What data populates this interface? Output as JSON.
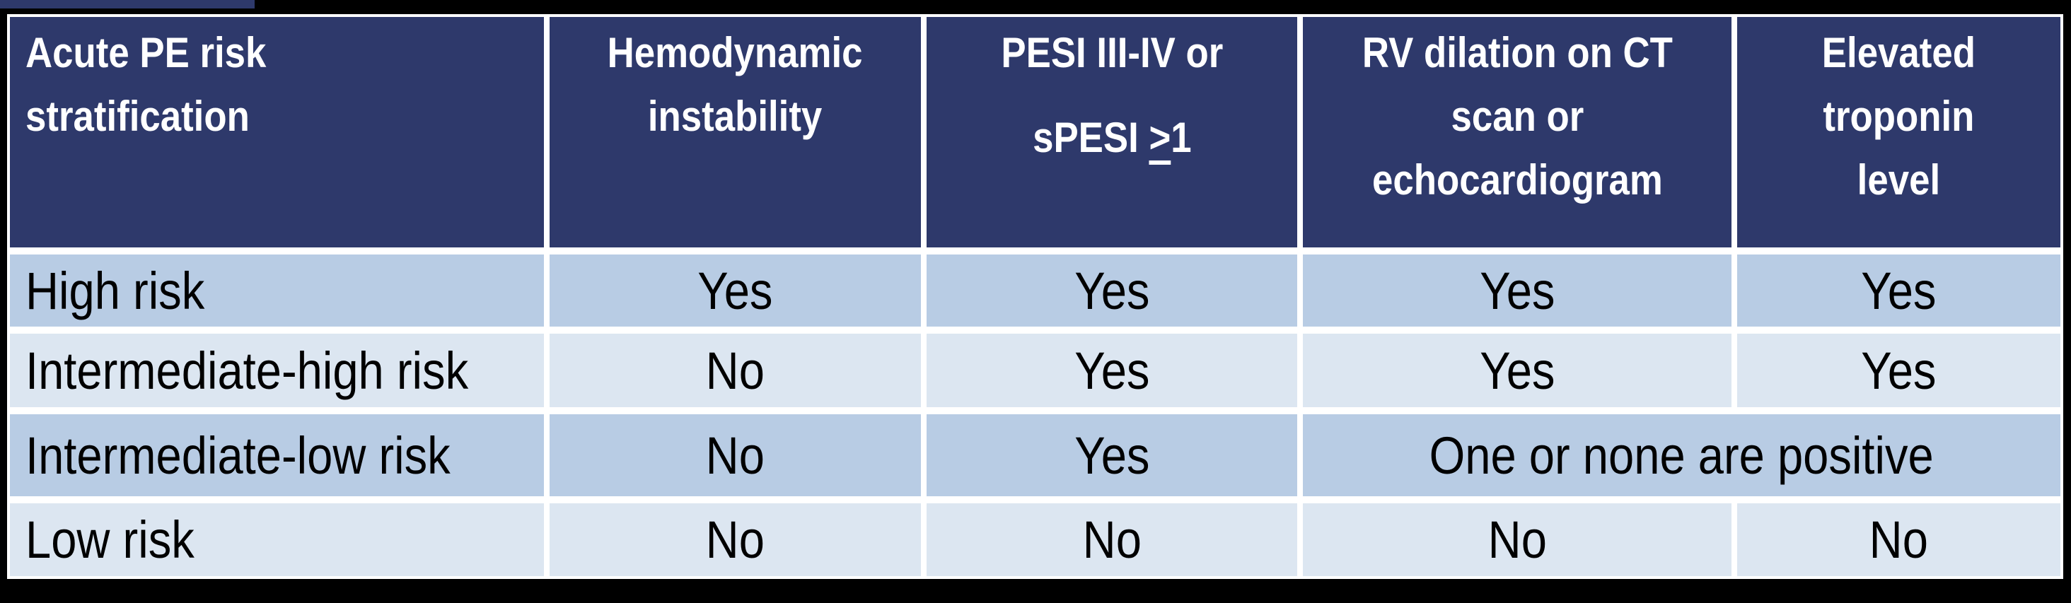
{
  "page": {
    "background_color": "#000000",
    "accent_strip_color": "#2E396B"
  },
  "table": {
    "colors": {
      "header_bg": "#2E396B",
      "header_text": "#FFFFFF",
      "band_dark": "#B8CCE4",
      "band_light": "#DCE6F1",
      "border": "#FFFFFF",
      "body_text": "#000000"
    },
    "header": {
      "col1": {
        "lines": [
          "Acute PE risk",
          "stratification"
        ]
      },
      "col2": {
        "lines": [
          "Hemodynamic",
          "instability"
        ]
      },
      "col3": {
        "line1": "PESI III-IV or",
        "line2_prefix": "sPESI ",
        "line2_gte": ">",
        "line2_suffix": "1"
      },
      "col4": {
        "lines": [
          "RV dilation on CT",
          "scan or",
          "echocardiogram"
        ]
      },
      "col5": {
        "lines": [
          "Elevated",
          "troponin",
          "level"
        ]
      }
    },
    "rows": [
      {
        "label": "High risk",
        "values": [
          "Yes",
          "Yes",
          "Yes",
          "Yes"
        ]
      },
      {
        "label": "Intermediate-high risk",
        "values": [
          "No",
          "Yes",
          "Yes",
          "Yes"
        ]
      },
      {
        "label": "Intermediate-low risk",
        "values": [
          "No",
          "Yes"
        ],
        "merged": "One or none are positive"
      },
      {
        "label": "Low risk",
        "values": [
          "No",
          "No",
          "No",
          "No"
        ]
      }
    ]
  }
}
